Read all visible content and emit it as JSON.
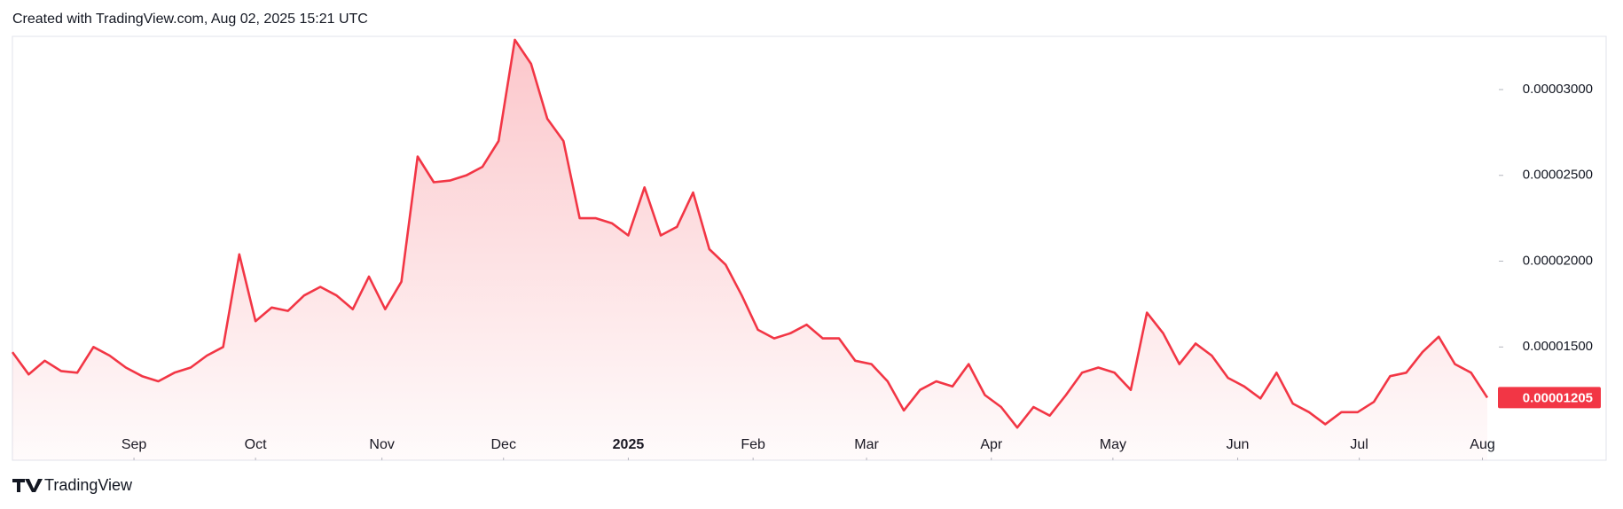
{
  "header": "Created with TradingView.com, Aug 02, 2025 15:21 UTC",
  "footer": "TradingView",
  "chart_data": {
    "type": "area",
    "color": "#f23645",
    "values": [
      1.47e-05,
      1.34e-05,
      1.42e-05,
      1.36e-05,
      1.35e-05,
      1.5e-05,
      1.45e-05,
      1.38e-05,
      1.33e-05,
      1.3e-05,
      1.35e-05,
      1.38e-05,
      1.45e-05,
      1.5e-05,
      2.04e-05,
      1.65e-05,
      1.73e-05,
      1.71e-05,
      1.8e-05,
      1.85e-05,
      1.8e-05,
      1.72e-05,
      1.91e-05,
      1.72e-05,
      1.88e-05,
      2.61e-05,
      2.46e-05,
      2.47e-05,
      2.5e-05,
      2.55e-05,
      2.7e-05,
      3.29e-05,
      3.15e-05,
      2.83e-05,
      2.7e-05,
      2.25e-05,
      2.25e-05,
      2.22e-05,
      2.15e-05,
      2.43e-05,
      2.15e-05,
      2.2e-05,
      2.4e-05,
      2.07e-05,
      1.98e-05,
      1.8e-05,
      1.6e-05,
      1.55e-05,
      1.58e-05,
      1.63e-05,
      1.55e-05,
      1.55e-05,
      1.42e-05,
      1.4e-05,
      1.3e-05,
      1.13e-05,
      1.25e-05,
      1.3e-05,
      1.27e-05,
      1.4e-05,
      1.22e-05,
      1.15e-05,
      1.03e-05,
      1.15e-05,
      1.1e-05,
      1.22e-05,
      1.35e-05,
      1.38e-05,
      1.35e-05,
      1.25e-05,
      1.7e-05,
      1.58e-05,
      1.4e-05,
      1.52e-05,
      1.45e-05,
      1.32e-05,
      1.27e-05,
      1.2e-05,
      1.35e-05,
      1.17e-05,
      1.12e-05,
      1.05e-05,
      1.12e-05,
      1.12e-05,
      1.18e-05,
      1.33e-05,
      1.35e-05,
      1.47e-05,
      1.56e-05,
      1.4e-05,
      1.35e-05,
      1.205e-05
    ],
    "last_value_label": "0.00001205",
    "ylim": [
      8.4e-06,
      3.31e-05
    ],
    "yticks": [
      {
        "value": 1.5e-05,
        "label": "0.00001500"
      },
      {
        "value": 2e-05,
        "label": "0.00002000"
      },
      {
        "value": 2.5e-05,
        "label": "0.00002500"
      },
      {
        "value": 3e-05,
        "label": "0.00003000"
      }
    ],
    "xticks": [
      {
        "value": 7.5,
        "label": "Sep"
      },
      {
        "value": 15.0,
        "label": "Oct"
      },
      {
        "value": 22.8,
        "label": "Nov"
      },
      {
        "value": 30.3,
        "label": "Dec"
      },
      {
        "value": 38.0,
        "label": "2025"
      },
      {
        "value": 45.7,
        "label": "Feb"
      },
      {
        "value": 52.7,
        "label": "Mar"
      },
      {
        "value": 60.4,
        "label": "Apr"
      },
      {
        "value": 67.9,
        "label": "May"
      },
      {
        "value": 75.6,
        "label": "Jun"
      },
      {
        "value": 83.1,
        "label": "Jul"
      },
      {
        "value": 90.7,
        "label": "Aug"
      }
    ]
  }
}
